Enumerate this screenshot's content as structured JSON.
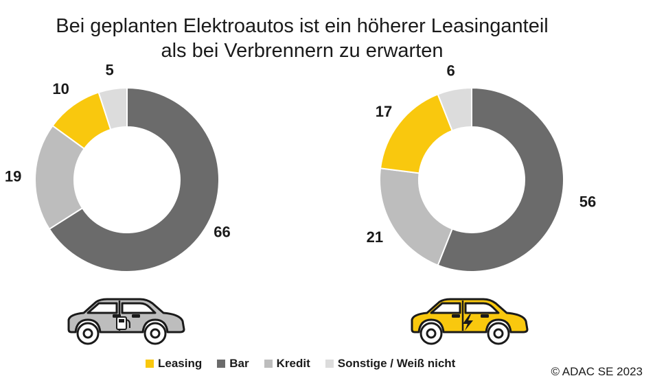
{
  "title_lines": [
    "Bei geplanten Elektroautos ist ein höherer Leasinganteil",
    "als bei Verbrennern zu erwarten"
  ],
  "copyright": "© ADAC SE 2023",
  "colors": {
    "Leasing": "#f9c80e",
    "Bar": "#6b6b6b",
    "Kredit": "#bdbdbd",
    "Sonstige / Weiß nicht": "#dcdcdc"
  },
  "legend": [
    {
      "label": "Leasing",
      "color": "#f9c80e"
    },
    {
      "label": "Bar",
      "color": "#6b6b6b"
    },
    {
      "label": "Kredit",
      "color": "#bdbdbd"
    },
    {
      "label": "Sonstige / Weiß nicht",
      "color": "#dcdcdc"
    }
  ],
  "chart_data": [
    {
      "type": "pie",
      "title": "",
      "icon": "combustion-car-icon",
      "categories": [
        "Bar",
        "Kredit",
        "Leasing",
        "Sonstige / Weiß nicht"
      ],
      "values": [
        66,
        19,
        10,
        5
      ]
    },
    {
      "type": "pie",
      "title": "",
      "icon": "electric-car-icon",
      "categories": [
        "Bar",
        "Kredit",
        "Leasing",
        "Sonstige / Weiß nicht"
      ],
      "values": [
        56,
        21,
        17,
        6
      ]
    }
  ]
}
